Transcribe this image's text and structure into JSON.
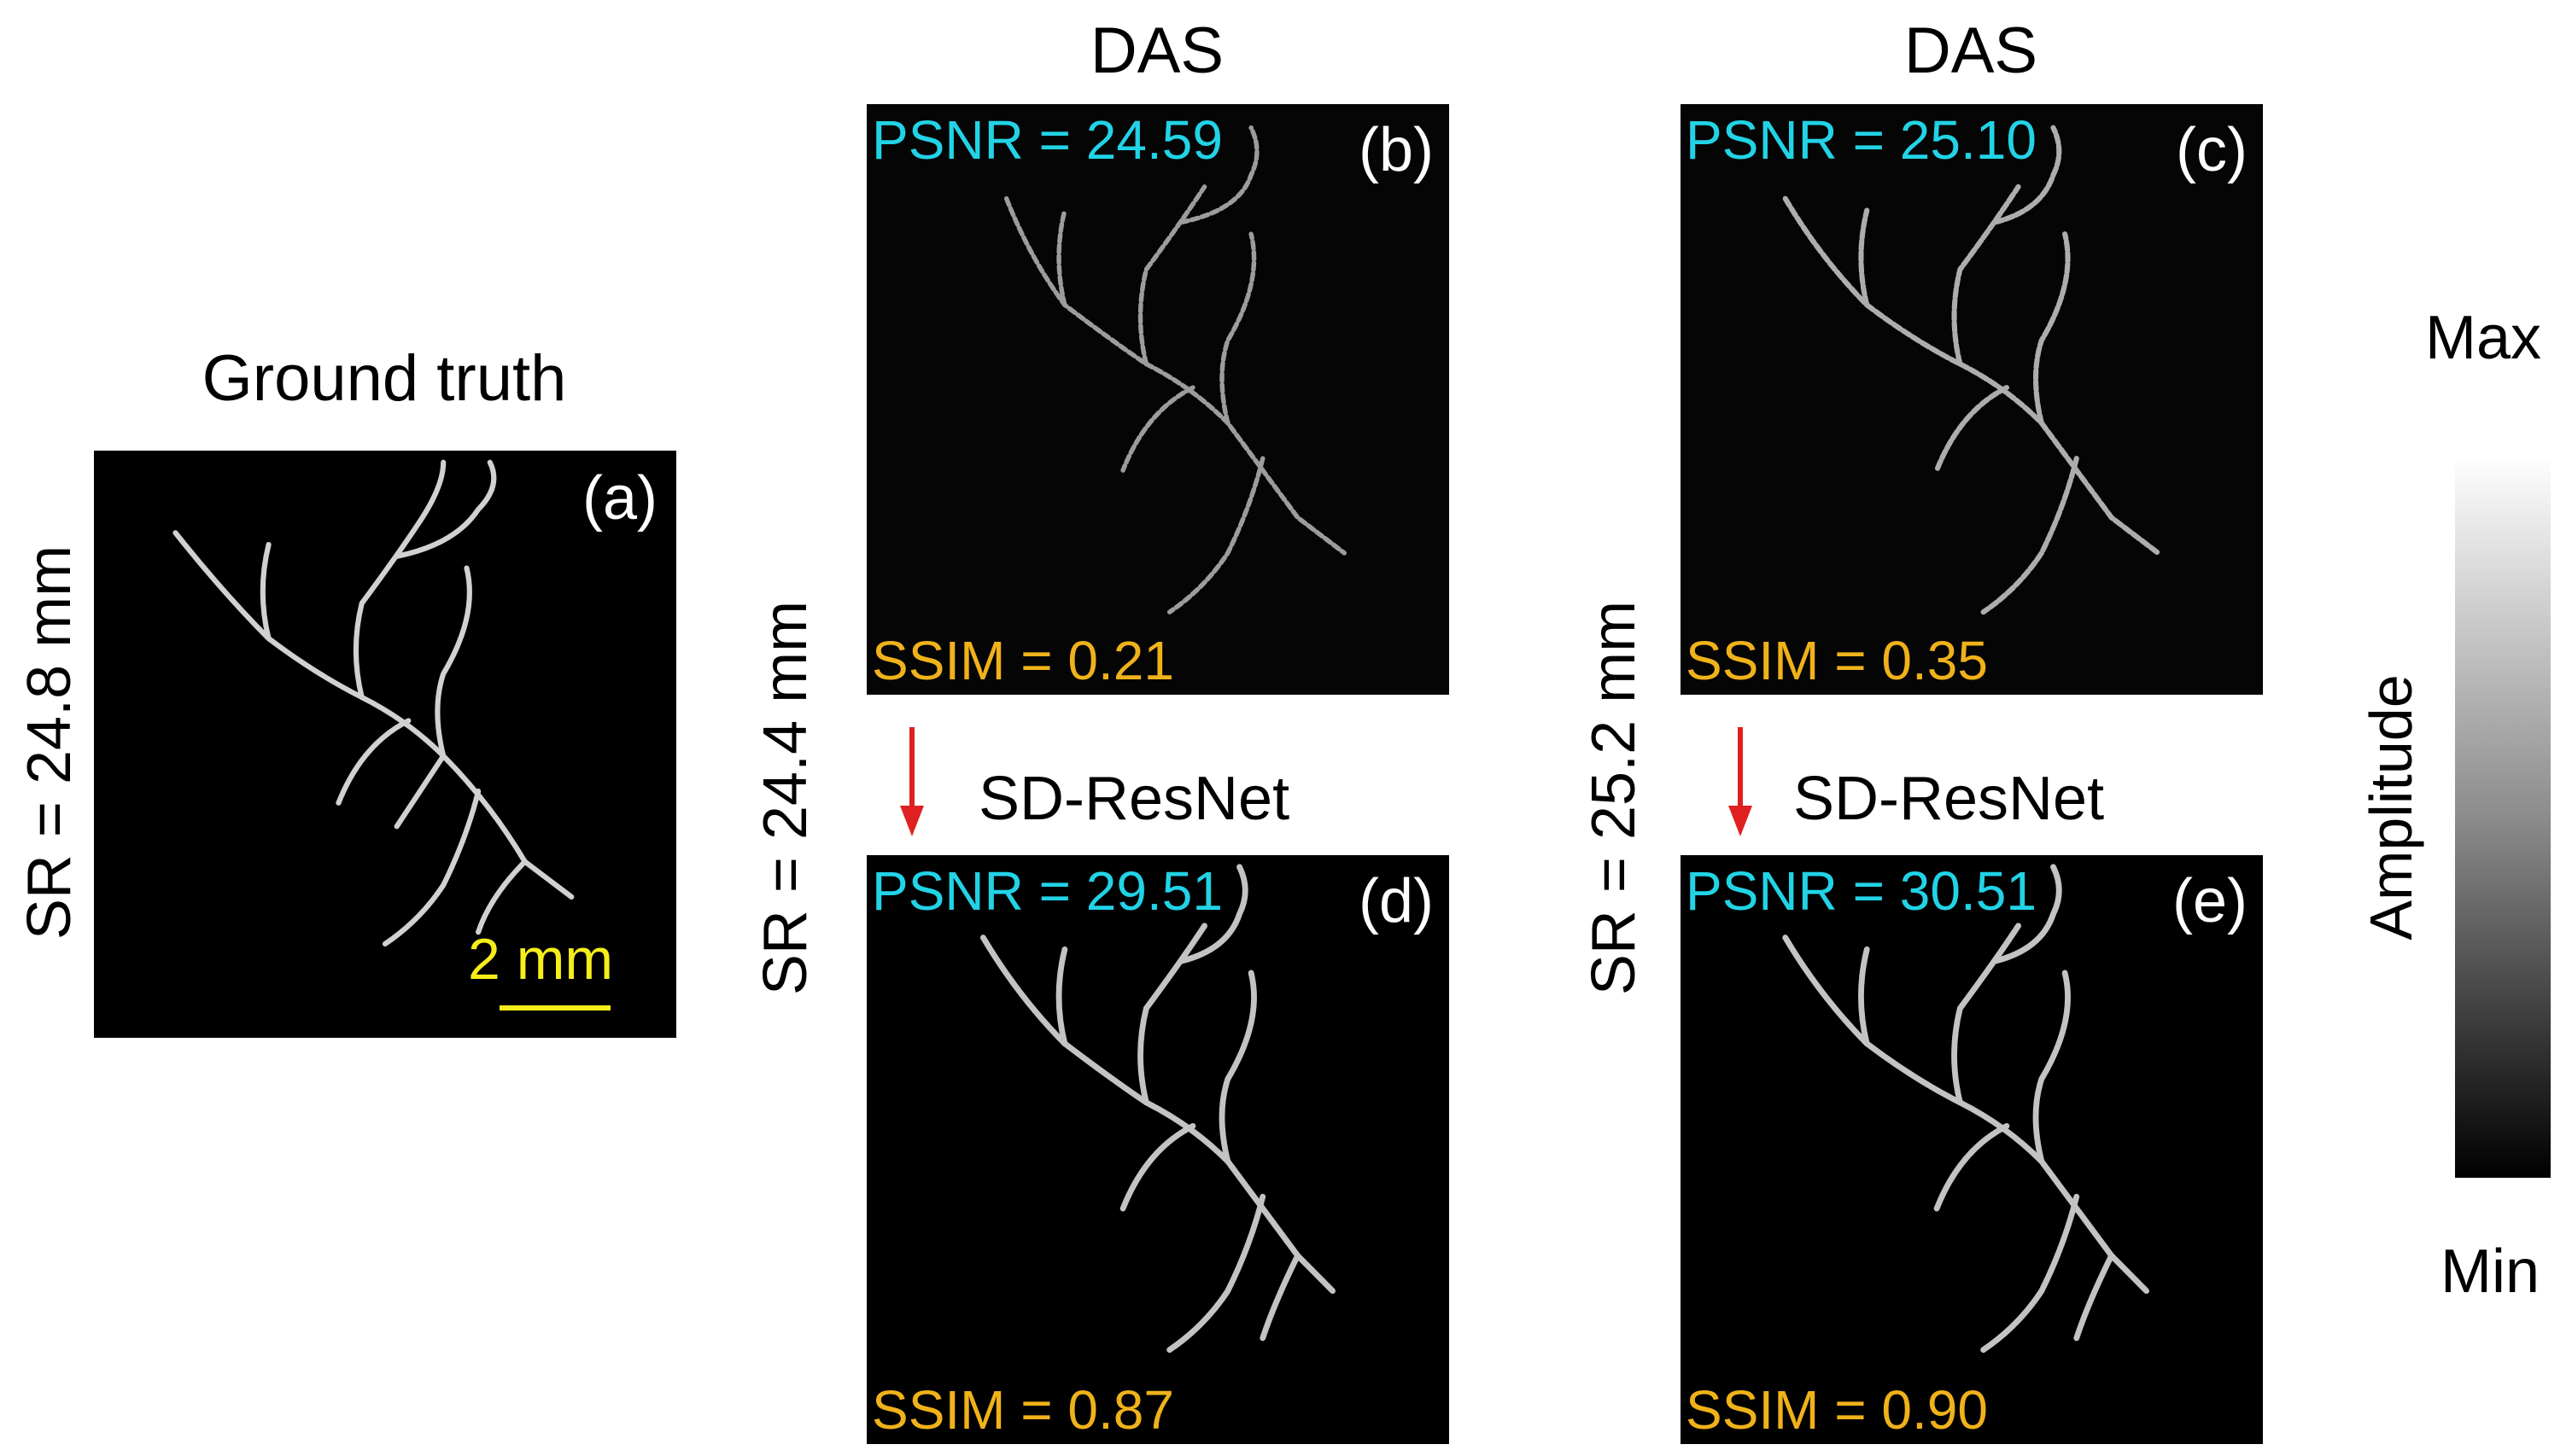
{
  "panels": {
    "a": {
      "title": "Ground truth",
      "letter": "(a)",
      "side_label": "SR = 24.8 mm",
      "scalebar": "2 mm"
    },
    "b": {
      "title": "DAS",
      "letter": "(b)",
      "psnr": "PSNR = 24.59",
      "ssim": "SSIM = 0.21"
    },
    "c": {
      "title": "DAS",
      "letter": "(c)",
      "psnr": "PSNR = 25.10",
      "ssim": "SSIM = 0.35"
    },
    "d": {
      "letter": "(d)",
      "psnr": "PSNR = 29.51",
      "ssim": "SSIM = 0.87"
    },
    "e": {
      "letter": "(e)",
      "psnr": "PSNR = 30.51",
      "ssim": "SSIM = 0.90"
    }
  },
  "column_labels": {
    "middle_side": "SR = 24.4 mm",
    "right_side": "SR = 25.2 mm",
    "middle_arrow_text": "SD-ResNet",
    "right_arrow_text": "SD-ResNet"
  },
  "colorbar": {
    "max": "Max",
    "min": "Min",
    "label": "Amplitude"
  },
  "colors": {
    "psnr": "#22d3e6",
    "ssim": "#f0b21a",
    "arrow": "#e02020",
    "scalebar": "#f5ee1a"
  }
}
